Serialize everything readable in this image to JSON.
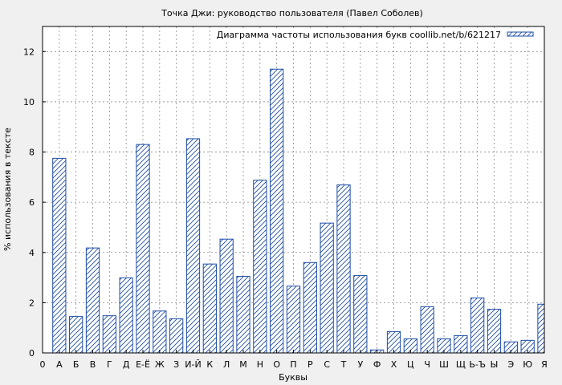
{
  "chart_data": {
    "type": "bar",
    "title": "Точка Джи: руководство пользователя (Павел Соболев)",
    "xlabel": "Буквы",
    "ylabel": "% использования в тексте",
    "legend": "Диаграмма частоты использования букв coollib.net/b/621217",
    "legend_position": "top-right",
    "grid": true,
    "ylim": [
      0,
      13
    ],
    "yticks": [
      0,
      2,
      4,
      6,
      8,
      10,
      12
    ],
    "x_start_label": "0",
    "categories": [
      "А",
      "Б",
      "В",
      "Г",
      "Д",
      "Е-Ё",
      "Ж",
      "З",
      "И-Й",
      "К",
      "Л",
      "М",
      "Н",
      "О",
      "П",
      "Р",
      "С",
      "Т",
      "У",
      "Ф",
      "Х",
      "Ц",
      "Ч",
      "Ш",
      "Щ",
      "Ь-Ъ",
      "Ы",
      "Э",
      "Ю",
      "Я"
    ],
    "values": [
      7.75,
      1.45,
      4.18,
      1.48,
      2.99,
      8.3,
      1.67,
      1.36,
      8.53,
      3.54,
      4.53,
      3.05,
      6.88,
      11.3,
      2.66,
      3.6,
      5.17,
      6.69,
      3.08,
      0.12,
      0.85,
      0.56,
      1.84,
      0.56,
      0.69,
      2.19,
      1.74,
      0.44,
      0.5,
      1.94
    ],
    "colors": {
      "bar_stroke": "#1f4ea6",
      "grid": "#888888"
    }
  }
}
